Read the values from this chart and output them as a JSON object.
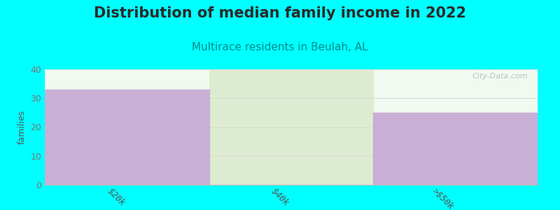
{
  "title": "Distribution of median family income in 2022",
  "subtitle": "Multirace residents in Beulah, AL",
  "categories": [
    "$20k",
    "$40k",
    ">$50k"
  ],
  "values": [
    33,
    0,
    25
  ],
  "bar_colors": [
    "#c9aed6",
    "#ddecd0",
    "#c9aed6"
  ],
  "background_color": "#00ffff",
  "plot_bg_color": "#f0faf0",
  "ylabel": "families",
  "ylim": [
    0,
    40
  ],
  "yticks": [
    0,
    10,
    20,
    30,
    40
  ],
  "title_fontsize": 15,
  "subtitle_fontsize": 11,
  "subtitle_color": "#008b8b",
  "watermark": "City-Data.com",
  "grid_color": "#d8d8d8",
  "bar_width": 0.999
}
